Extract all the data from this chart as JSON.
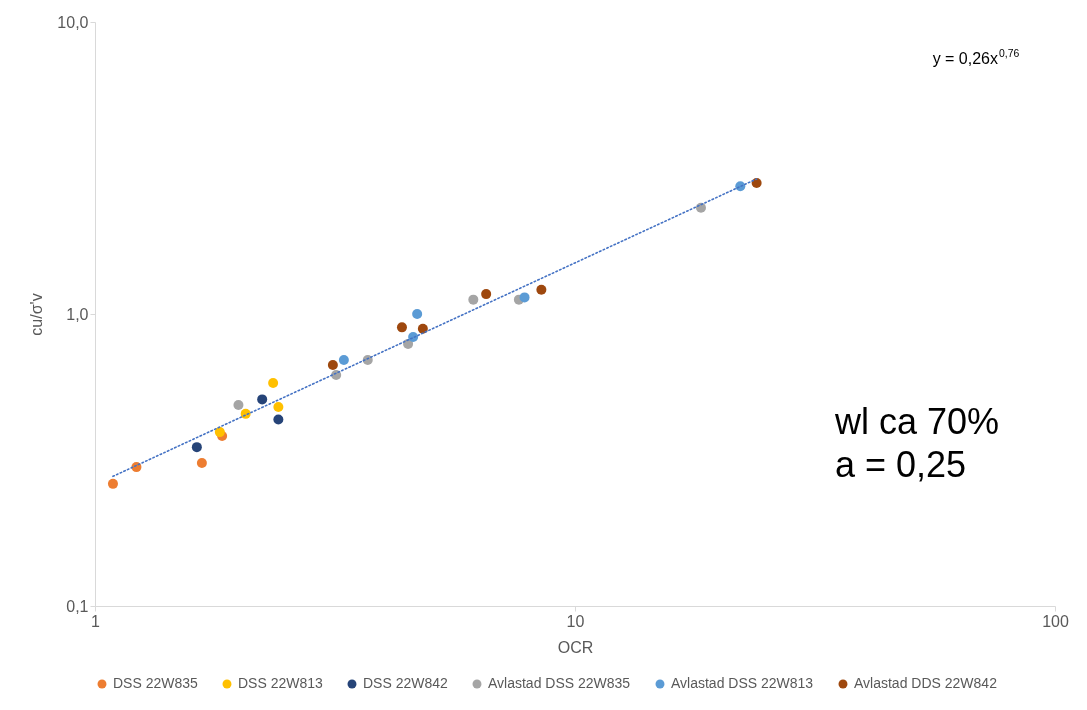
{
  "chart_data": {
    "type": "scatter",
    "xlabel": "OCR",
    "ylabel": "cu/σ'v",
    "log": "xy",
    "grid": false,
    "legend": "bottom",
    "marker": "circle",
    "xlim": [
      1,
      100
    ],
    "xticks": [
      1,
      10,
      100
    ],
    "ylim": [
      0.1,
      10
    ],
    "yticks": [
      {
        "value": 0.1,
        "label": "0,1"
      },
      {
        "value": 1,
        "label": "1,0"
      },
      {
        "value": 10,
        "label": "10,0"
      }
    ],
    "annotations": [
      "y = 0,26x$^{0,76}$",
      "wl ca 70%",
      "a = 0,25"
    ],
    "series": [
      {
        "name": "DSS 22W835",
        "color": "#ed7d31",
        "x": [
          1.09,
          1.22,
          1.67,
          1.84
        ],
        "values": [
          0.262,
          0.299,
          0.309,
          0.382
        ]
      },
      {
        "name": "DSS 22W813",
        "color": "#ffc000",
        "x": [
          1.82,
          2.06,
          2.35,
          2.41
        ],
        "values": [
          0.394,
          0.455,
          0.58,
          0.48
        ]
      },
      {
        "name": "DSS 22W842",
        "color": "#264478",
        "x": [
          1.63,
          2.23,
          2.41
        ],
        "values": [
          0.35,
          0.51,
          0.435
        ]
      },
      {
        "name": "Avlastad DSS 22W835",
        "color": "#a5a5a5",
        "x": [
          1.99,
          3.18,
          3.7,
          4.49,
          6.14,
          7.64,
          18.3
        ],
        "values": [
          0.488,
          0.618,
          0.696,
          0.79,
          1.12,
          1.12,
          2.31
        ]
      },
      {
        "name": "Avlastad DSS 22W813",
        "color": "#5b9bd5",
        "x": [
          3.3,
          4.6,
          4.69,
          7.85,
          22.1
        ],
        "values": [
          0.696,
          0.834,
          1.0,
          1.14,
          2.74
        ]
      },
      {
        "name": "Avlastad DDS 22W842",
        "color": "#9e480e",
        "x": [
          3.13,
          4.36,
          4.82,
          6.53,
          8.51,
          23.9
        ],
        "values": [
          0.669,
          0.9,
          0.89,
          1.17,
          1.21,
          2.81
        ]
      },
      {
        "type": "line",
        "line_style": "dotted",
        "marker": "none",
        "color": "#4472c4",
        "x": [
          1.09,
          23.9
        ],
        "values": [
          0.278,
          2.9
        ]
      }
    ]
  }
}
